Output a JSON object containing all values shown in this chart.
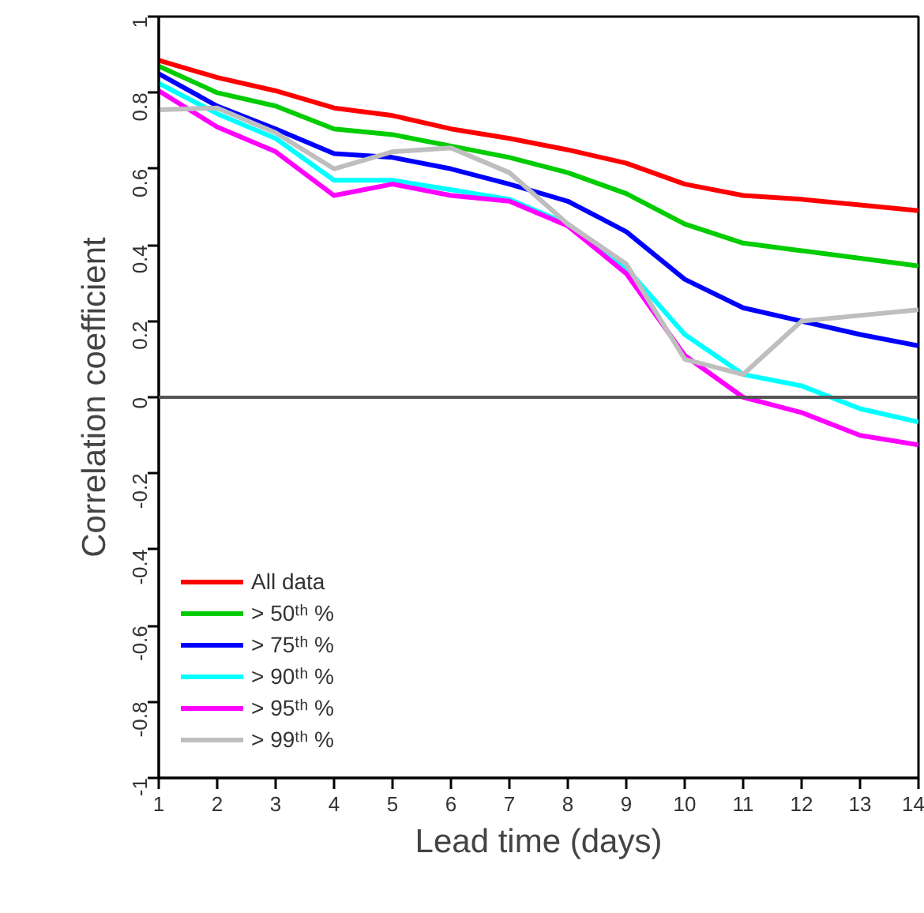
{
  "chart_data": {
    "type": "line",
    "xlabel": "Lead time (days)",
    "ylabel": "Correlation coefficient",
    "x": [
      1,
      2,
      3,
      4,
      5,
      6,
      7,
      8,
      9,
      10,
      11,
      12,
      13,
      14
    ],
    "xlim": [
      1,
      14
    ],
    "xticks": [
      1,
      2,
      3,
      4,
      5,
      6,
      7,
      8,
      9,
      10,
      11,
      12,
      13,
      14
    ],
    "ylim": [
      -1,
      1
    ],
    "yticks": [
      -1,
      -0.8,
      -0.6,
      -0.4,
      -0.2,
      0,
      0.2,
      0.4,
      0.6,
      0.8,
      1
    ],
    "grid": false,
    "legend": "bottom left",
    "line_style": "solid",
    "ref_lines": [
      {
        "axis": "y",
        "value": 0,
        "color": "#555555"
      }
    ],
    "series": [
      {
        "name": "All data",
        "color": "#ff0000",
        "values": [
          0.885,
          0.84,
          0.805,
          0.76,
          0.74,
          0.705,
          0.68,
          0.65,
          0.615,
          0.56,
          0.53,
          0.52,
          0.505,
          0.49
        ]
      },
      {
        "name": "> 50ᵗʰ %",
        "color": "#00cc00",
        "values": [
          0.87,
          0.8,
          0.765,
          0.705,
          0.69,
          0.66,
          0.63,
          0.59,
          0.535,
          0.455,
          0.405,
          0.385,
          0.365,
          0.345
        ]
      },
      {
        "name": "> 75ᵗʰ %",
        "color": "#0000ff",
        "values": [
          0.85,
          0.765,
          0.705,
          0.64,
          0.63,
          0.6,
          0.56,
          0.515,
          0.435,
          0.31,
          0.235,
          0.2,
          0.165,
          0.135
        ]
      },
      {
        "name": "> 90ᵗʰ %",
        "color": "#00ffff",
        "values": [
          0.825,
          0.745,
          0.68,
          0.57,
          0.57,
          0.545,
          0.52,
          0.455,
          0.34,
          0.165,
          0.06,
          0.03,
          -0.03,
          -0.065
        ]
      },
      {
        "name": "> 95ᵗʰ %",
        "color": "#ff00ff",
        "values": [
          0.805,
          0.71,
          0.645,
          0.53,
          0.56,
          0.53,
          0.515,
          0.45,
          0.325,
          0.11,
          0.0,
          -0.04,
          -0.1,
          -0.125
        ]
      },
      {
        "name": "> 99ᵗʰ %",
        "color": "#bebebe",
        "values": [
          0.755,
          0.76,
          0.695,
          0.6,
          0.645,
          0.655,
          0.59,
          0.455,
          0.35,
          0.1,
          0.06,
          0.2,
          0.215,
          0.23
        ]
      }
    ]
  }
}
